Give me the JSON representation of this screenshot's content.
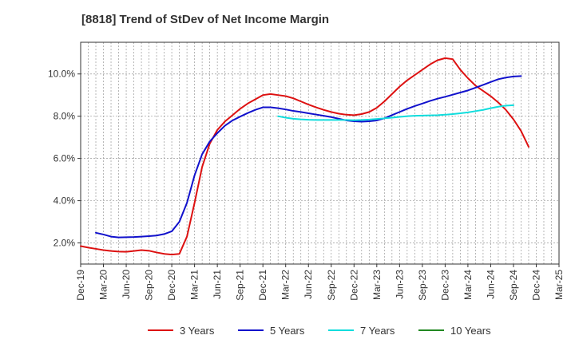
{
  "chart_data": {
    "type": "line",
    "title": "[8818]  Trend of StDev of Net Income Margin",
    "xlabel": "",
    "ylabel": "",
    "x_ticks": [
      "Dec-19",
      "Mar-20",
      "Jun-20",
      "Sep-20",
      "Dec-20",
      "Mar-21",
      "Jun-21",
      "Sep-21",
      "Dec-21",
      "Mar-22",
      "Jun-22",
      "Sep-22",
      "Dec-22",
      "Mar-23",
      "Jun-23",
      "Sep-23",
      "Dec-23",
      "Mar-24",
      "Jun-24",
      "Sep-24",
      "Dec-24",
      "Mar-25"
    ],
    "y_ticks": [
      "2.0%",
      "4.0%",
      "6.0%",
      "8.0%",
      "10.0%"
    ],
    "y_tick_values": [
      2,
      4,
      6,
      8,
      10
    ],
    "ylim": [
      1.0,
      11.5
    ],
    "grid": true,
    "legend_position": "bottom",
    "series": [
      {
        "name": "3 Years",
        "color": "#dd1111",
        "points": [
          [
            "Dec-19",
            1.85
          ],
          [
            "Jan-20",
            1.78
          ],
          [
            "Feb-20",
            1.72
          ],
          [
            "Mar-20",
            1.66
          ],
          [
            "Apr-20",
            1.62
          ],
          [
            "May-20",
            1.59
          ],
          [
            "Jun-20",
            1.58
          ],
          [
            "Jul-20",
            1.62
          ],
          [
            "Aug-20",
            1.66
          ],
          [
            "Sep-20",
            1.63
          ],
          [
            "Oct-20",
            1.55
          ],
          [
            "Nov-20",
            1.48
          ],
          [
            "Dec-20",
            1.45
          ],
          [
            "Jan-21",
            1.48
          ],
          [
            "Feb-21",
            2.3
          ],
          [
            "Mar-21",
            3.9
          ],
          [
            "Apr-21",
            5.6
          ],
          [
            "May-21",
            6.7
          ],
          [
            "Jun-21",
            7.35
          ],
          [
            "Jul-21",
            7.75
          ],
          [
            "Aug-21",
            8.05
          ],
          [
            "Sep-21",
            8.35
          ],
          [
            "Oct-21",
            8.6
          ],
          [
            "Nov-21",
            8.8
          ],
          [
            "Dec-21",
            9.0
          ],
          [
            "Jan-22",
            9.05
          ],
          [
            "Feb-22",
            9.0
          ],
          [
            "Mar-22",
            8.95
          ],
          [
            "Apr-22",
            8.85
          ],
          [
            "May-22",
            8.7
          ],
          [
            "Jun-22",
            8.55
          ],
          [
            "Jul-22",
            8.42
          ],
          [
            "Aug-22",
            8.3
          ],
          [
            "Sep-22",
            8.2
          ],
          [
            "Oct-22",
            8.12
          ],
          [
            "Nov-22",
            8.07
          ],
          [
            "Dec-22",
            8.05
          ],
          [
            "Jan-23",
            8.1
          ],
          [
            "Feb-23",
            8.2
          ],
          [
            "Mar-23",
            8.4
          ],
          [
            "Apr-23",
            8.7
          ],
          [
            "May-23",
            9.05
          ],
          [
            "Jun-23",
            9.4
          ],
          [
            "Jul-23",
            9.7
          ],
          [
            "Aug-23",
            9.95
          ],
          [
            "Sep-23",
            10.2
          ],
          [
            "Oct-23",
            10.45
          ],
          [
            "Nov-23",
            10.65
          ],
          [
            "Dec-23",
            10.75
          ],
          [
            "Jan-24",
            10.7
          ],
          [
            "Feb-24",
            10.2
          ],
          [
            "Mar-24",
            9.8
          ],
          [
            "Apr-24",
            9.45
          ],
          [
            "May-24",
            9.2
          ],
          [
            "Jun-24",
            8.95
          ],
          [
            "Jul-24",
            8.65
          ],
          [
            "Aug-24",
            8.3
          ],
          [
            "Sep-24",
            7.85
          ],
          [
            "Oct-24",
            7.3
          ],
          [
            "Nov-24",
            6.55
          ]
        ]
      },
      {
        "name": "5 Years",
        "color": "#1111cc",
        "points": [
          [
            "Feb-20",
            2.48
          ],
          [
            "Mar-20",
            2.4
          ],
          [
            "Apr-20",
            2.3
          ],
          [
            "May-20",
            2.26
          ],
          [
            "Jun-20",
            2.27
          ],
          [
            "Jul-20",
            2.28
          ],
          [
            "Aug-20",
            2.3
          ],
          [
            "Sep-20",
            2.32
          ],
          [
            "Oct-20",
            2.35
          ],
          [
            "Nov-20",
            2.42
          ],
          [
            "Dec-20",
            2.55
          ],
          [
            "Jan-21",
            3.0
          ],
          [
            "Feb-21",
            3.9
          ],
          [
            "Mar-21",
            5.2
          ],
          [
            "Apr-21",
            6.2
          ],
          [
            "May-21",
            6.8
          ],
          [
            "Jun-21",
            7.2
          ],
          [
            "Jul-21",
            7.55
          ],
          [
            "Aug-21",
            7.8
          ],
          [
            "Sep-21",
            7.98
          ],
          [
            "Oct-21",
            8.15
          ],
          [
            "Nov-21",
            8.3
          ],
          [
            "Dec-21",
            8.42
          ],
          [
            "Jan-22",
            8.42
          ],
          [
            "Feb-22",
            8.38
          ],
          [
            "Mar-22",
            8.32
          ],
          [
            "Apr-22",
            8.25
          ],
          [
            "May-22",
            8.2
          ],
          [
            "Jun-22",
            8.14
          ],
          [
            "Jul-22",
            8.08
          ],
          [
            "Aug-22",
            8.02
          ],
          [
            "Sep-22",
            7.96
          ],
          [
            "Oct-22",
            7.88
          ],
          [
            "Nov-22",
            7.8
          ],
          [
            "Dec-22",
            7.76
          ],
          [
            "Jan-23",
            7.74
          ],
          [
            "Feb-23",
            7.76
          ],
          [
            "Mar-23",
            7.8
          ],
          [
            "Apr-23",
            7.9
          ],
          [
            "May-23",
            8.05
          ],
          [
            "Jun-23",
            8.2
          ],
          [
            "Jul-23",
            8.35
          ],
          [
            "Aug-23",
            8.48
          ],
          [
            "Sep-23",
            8.6
          ],
          [
            "Oct-23",
            8.72
          ],
          [
            "Nov-23",
            8.83
          ],
          [
            "Dec-23",
            8.92
          ],
          [
            "Jan-24",
            9.02
          ],
          [
            "Feb-24",
            9.12
          ],
          [
            "Mar-24",
            9.22
          ],
          [
            "Apr-24",
            9.35
          ],
          [
            "May-24",
            9.48
          ],
          [
            "Jun-24",
            9.62
          ],
          [
            "Jul-24",
            9.75
          ],
          [
            "Aug-24",
            9.83
          ],
          [
            "Sep-24",
            9.88
          ],
          [
            "Oct-24",
            9.9
          ]
        ]
      },
      {
        "name": "7 Years",
        "color": "#11dddd",
        "points": [
          [
            "Feb-22",
            8.0
          ],
          [
            "Mar-22",
            7.93
          ],
          [
            "Apr-22",
            7.88
          ],
          [
            "May-22",
            7.85
          ],
          [
            "Jun-22",
            7.83
          ],
          [
            "Jul-22",
            7.82
          ],
          [
            "Aug-22",
            7.82
          ],
          [
            "Sep-22",
            7.82
          ],
          [
            "Oct-22",
            7.82
          ],
          [
            "Nov-22",
            7.82
          ],
          [
            "Dec-22",
            7.81
          ],
          [
            "Jan-23",
            7.82
          ],
          [
            "Feb-23",
            7.84
          ],
          [
            "Mar-23",
            7.87
          ],
          [
            "Apr-23",
            7.9
          ],
          [
            "May-23",
            7.93
          ],
          [
            "Jun-23",
            7.97
          ],
          [
            "Jul-23",
            8.0
          ],
          [
            "Aug-23",
            8.02
          ],
          [
            "Sep-23",
            8.03
          ],
          [
            "Oct-23",
            8.04
          ],
          [
            "Nov-23",
            8.05
          ],
          [
            "Dec-23",
            8.07
          ],
          [
            "Jan-24",
            8.1
          ],
          [
            "Feb-24",
            8.14
          ],
          [
            "Mar-24",
            8.18
          ],
          [
            "Apr-24",
            8.24
          ],
          [
            "May-24",
            8.3
          ],
          [
            "Jun-24",
            8.38
          ],
          [
            "Jul-24",
            8.45
          ],
          [
            "Aug-24",
            8.5
          ],
          [
            "Sep-24",
            8.52
          ]
        ]
      },
      {
        "name": "10 Years",
        "color": "#228822",
        "points": []
      }
    ]
  }
}
